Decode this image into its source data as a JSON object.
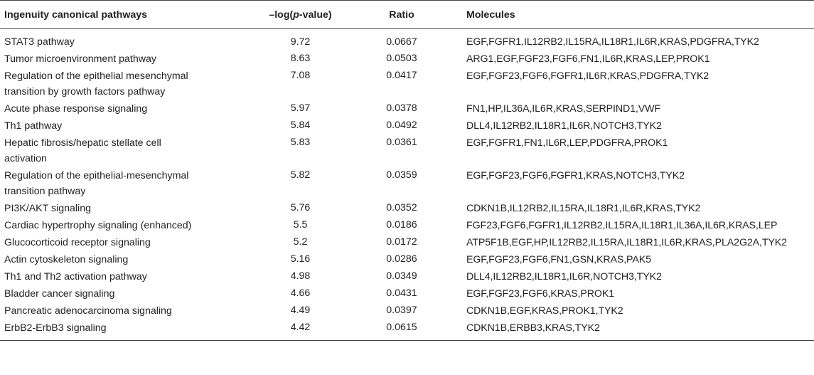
{
  "headers": {
    "pathway": "Ingenuity canonical pathways",
    "logp_prefix": "–log(",
    "logp_italic": "p",
    "logp_suffix": "-value)",
    "ratio": "Ratio",
    "molecules": "Molecules"
  },
  "rows": [
    {
      "pathway": "STAT3 pathway",
      "logp": "9.72",
      "ratio": "0.0667",
      "molecules": "EGF,FGFR1,IL12RB2,IL15RA,IL18R1,IL6R,KRAS,PDGFRA,TYK2"
    },
    {
      "pathway": "Tumor microenvironment pathway",
      "logp": "8.63",
      "ratio": "0.0503",
      "molecules": "ARG1,EGF,FGF23,FGF6,FN1,IL6R,KRAS,LEP,PROK1"
    },
    {
      "pathway_line1": "Regulation of the epithelial mesenchymal",
      "pathway_line2": "transition by growth factors pathway",
      "logp": "7.08",
      "ratio": "0.0417",
      "molecules": "EGF,FGF23,FGF6,FGFR1,IL6R,KRAS,PDGFRA,TYK2"
    },
    {
      "pathway": "Acute phase response signaling",
      "logp": "5.97",
      "ratio": "0.0378",
      "molecules": "FN1,HP,IL36A,IL6R,KRAS,SERPIND1,VWF"
    },
    {
      "pathway": "Th1 pathway",
      "logp": "5.84",
      "ratio": "0.0492",
      "molecules": "DLL4,IL12RB2,IL18R1,IL6R,NOTCH3,TYK2"
    },
    {
      "pathway_line1": "Hepatic fibrosis/hepatic stellate cell",
      "pathway_line2": "activation",
      "logp": "5.83",
      "ratio": "0.0361",
      "molecules": "EGF,FGFR1,FN1,IL6R,LEP,PDGFRA,PROK1"
    },
    {
      "pathway_line1": "Regulation of the epithelial-mesenchymal",
      "pathway_line2": "transition pathway",
      "logp": "5.82",
      "ratio": "0.0359",
      "molecules": "EGF,FGF23,FGF6,FGFR1,KRAS,NOTCH3,TYK2"
    },
    {
      "pathway": "PI3K/AKT signaling",
      "logp": "5.76",
      "ratio": "0.0352",
      "molecules": "CDKN1B,IL12RB2,IL15RA,IL18R1,IL6R,KRAS,TYK2"
    },
    {
      "pathway": "Cardiac hypertrophy signaling (enhanced)",
      "logp": "5.5",
      "ratio": "0.0186",
      "molecules": "FGF23,FGF6,FGFR1,IL12RB2,IL15RA,IL18R1,IL36A,IL6R,KRAS,LEP"
    },
    {
      "pathway": "Glucocorticoid receptor signaling",
      "logp": "5.2",
      "ratio": "0.0172",
      "molecules": "ATP5F1B,EGF,HP,IL12RB2,IL15RA,IL18R1,IL6R,KRAS,PLA2G2A,TYK2"
    },
    {
      "pathway": "Actin cytoskeleton signaling",
      "logp": "5.16",
      "ratio": "0.0286",
      "molecules": "EGF,FGF23,FGF6,FN1,GSN,KRAS,PAK5"
    },
    {
      "pathway": "Th1 and Th2 activation pathway",
      "logp": "4.98",
      "ratio": "0.0349",
      "molecules": "DLL4,IL12RB2,IL18R1,IL6R,NOTCH3,TYK2"
    },
    {
      "pathway": "Bladder cancer signaling",
      "logp": "4.66",
      "ratio": "0.0431",
      "molecules": "EGF,FGF23,FGF6,KRAS,PROK1"
    },
    {
      "pathway": "Pancreatic adenocarcinoma signaling",
      "logp": "4.49",
      "ratio": "0.0397",
      "molecules": "CDKN1B,EGF,KRAS,PROK1,TYK2"
    },
    {
      "pathway": "ErbB2-ErbB3 signaling",
      "logp": "4.42",
      "ratio": "0.0615",
      "molecules": "CDKN1B,ERBB3,KRAS,TYK2"
    }
  ]
}
